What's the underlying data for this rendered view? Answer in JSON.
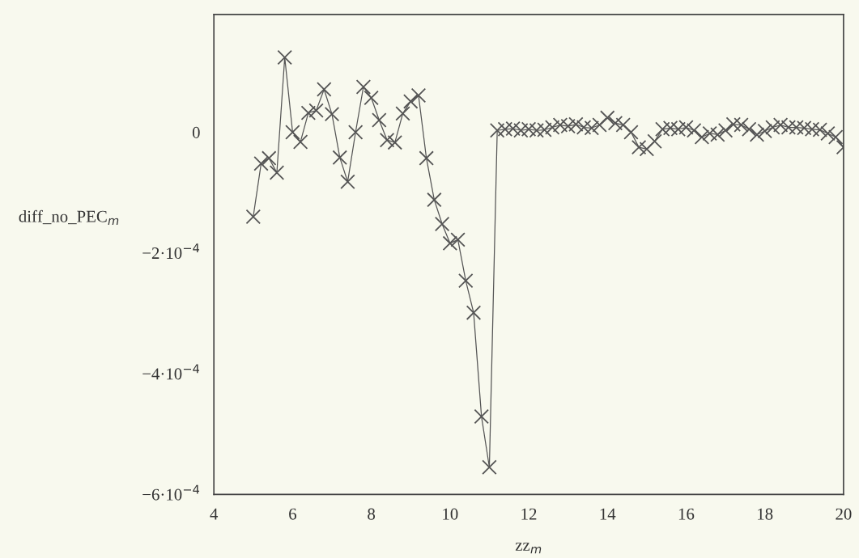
{
  "chart_data": {
    "type": "line",
    "xlabel": "zz$_{m}$",
    "ylabel": "diff_no_PEC$_{m}$",
    "x": [
      5.0,
      5.2,
      5.4,
      5.6,
      5.8,
      6.0,
      6.2,
      6.4,
      6.6,
      6.8,
      7.0,
      7.2,
      7.4,
      7.6,
      7.8,
      8.0,
      8.2,
      8.4,
      8.6,
      8.8,
      9.0,
      9.2,
      9.4,
      9.6,
      9.8,
      10.0,
      10.2,
      10.4,
      10.6,
      10.8,
      11.0,
      11.2,
      11.4,
      11.6,
      11.8,
      12.0,
      12.2,
      12.4,
      12.6,
      12.8,
      13.0,
      13.2,
      13.4,
      13.6,
      13.8,
      14.0,
      14.2,
      14.4,
      14.6,
      14.8,
      15.0,
      15.2,
      15.4,
      15.6,
      15.8,
      16.0,
      16.2,
      16.4,
      16.6,
      16.8,
      17.0,
      17.2,
      17.4,
      17.6,
      17.8,
      18.0,
      18.2,
      18.4,
      18.6,
      18.8,
      19.0,
      19.2,
      19.4,
      19.6,
      19.8,
      20.0
    ],
    "series": [
      {
        "color": "#555555",
        "values": [
          -0.00014,
          -5.2e-05,
          -4.3e-05,
          -6.7e-05,
          0.000124,
          0.0,
          -1.6e-05,
          3.2e-05,
          3.6e-05,
          7.1e-05,
          3e-05,
          -4.2e-05,
          -8.2e-05,
          0.0,
          7.5e-05,
          5.7e-05,
          2e-05,
          -1.3e-05,
          -1.7e-05,
          3.1e-05,
          5.1e-05,
          6.1e-05,
          -4.3e-05,
          -0.000112,
          -0.000152,
          -0.000184,
          -0.000178,
          -0.000246,
          -0.000299,
          -0.000471,
          -0.000555,
          3e-06,
          5e-06,
          6e-06,
          3e-06,
          5e-06,
          3e-06,
          4e-06,
          8e-06,
          1.2e-05,
          1e-05,
          1.3e-05,
          8e-06,
          7e-06,
          1.2e-05,
          2.4e-05,
          1.5e-05,
          1.2e-05,
          0.0,
          -2.5e-05,
          -2.8e-05,
          -1.5e-05,
          5e-06,
          7e-06,
          5e-06,
          8e-06,
          3e-06,
          -8e-06,
          -2e-06,
          -4e-06,
          3e-06,
          1.3e-05,
          1.2e-05,
          5e-06,
          -4e-06,
          2e-06,
          8e-06,
          1.2e-05,
          8e-06,
          8e-06,
          7e-06,
          5e-06,
          4e-06,
          -2e-06,
          -8e-06,
          -2.5e-05
        ]
      }
    ],
    "marker": "cross",
    "line_style": "solid",
    "grid": false,
    "legend": false,
    "xlim": [
      4,
      20
    ],
    "xticks": [
      4,
      6,
      8,
      10,
      12,
      14,
      16,
      18,
      20
    ],
    "ylim": [
      -0.0006,
      0.000195
    ],
    "yticks": [
      {
        "value": -0.0006,
        "label": "−6·10$^{−4}$"
      },
      {
        "value": -0.0004,
        "label": "−4·10$^{−4}$"
      },
      {
        "value": -0.0002,
        "label": "−2·10$^{−4}$"
      },
      0
    ]
  }
}
